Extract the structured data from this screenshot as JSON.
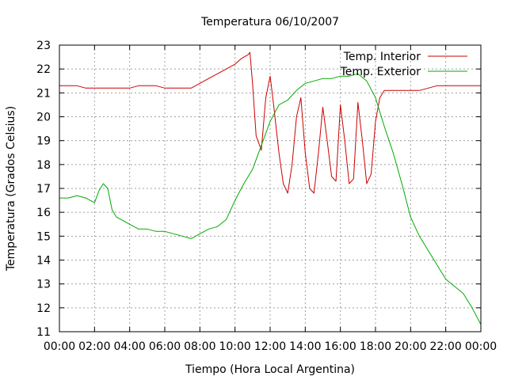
{
  "chart_data": {
    "type": "line",
    "title": "Temperatura 06/10/2007",
    "xlabel": "Tiempo (Hora Local Argentina)",
    "ylabel": "Temperatura (Grados Celsius)",
    "xlim": [
      0,
      24
    ],
    "ylim": [
      11,
      23
    ],
    "grid": true,
    "legend_position": "top-right",
    "x_tick_labels": [
      "00:00",
      "02:00",
      "04:00",
      "06:00",
      "08:00",
      "10:00",
      "12:00",
      "14:00",
      "16:00",
      "18:00",
      "20:00",
      "22:00",
      "00:00"
    ],
    "y_tick_labels": [
      "11",
      "12",
      "13",
      "14",
      "15",
      "16",
      "17",
      "18",
      "19",
      "20",
      "21",
      "22",
      "23"
    ],
    "series": [
      {
        "name": "Temp. Interior",
        "color": "#cc0000",
        "x": [
          0,
          0.5,
          1,
          1.5,
          2,
          2.5,
          3,
          3.5,
          4,
          4.5,
          5,
          5.5,
          6,
          6.5,
          7,
          7.5,
          8,
          8.5,
          9,
          9.5,
          10,
          10.3,
          10.5,
          10.75,
          10.85,
          11.0,
          11.2,
          11.5,
          11.75,
          12.0,
          12.2,
          12.5,
          12.75,
          13.0,
          13.25,
          13.5,
          13.75,
          14.0,
          14.25,
          14.5,
          14.75,
          15.0,
          15.25,
          15.5,
          15.75,
          16.0,
          16.25,
          16.5,
          16.75,
          17.0,
          17.25,
          17.5,
          17.75,
          18.0,
          18.25,
          18.5,
          18.75,
          19.0,
          19.5,
          20,
          20.5,
          21,
          21.5,
          22,
          22.5,
          23,
          23.5,
          24
        ],
        "y": [
          21.3,
          21.3,
          21.3,
          21.2,
          21.2,
          21.2,
          21.2,
          21.2,
          21.2,
          21.3,
          21.3,
          21.3,
          21.2,
          21.2,
          21.2,
          21.2,
          21.4,
          21.6,
          21.8,
          22.0,
          22.2,
          22.4,
          22.5,
          22.6,
          22.7,
          21.4,
          19.2,
          18.6,
          20.8,
          21.7,
          20.5,
          18.5,
          17.2,
          16.8,
          18.0,
          20.0,
          20.8,
          18.5,
          17.0,
          16.8,
          18.5,
          20.4,
          19.0,
          17.5,
          17.3,
          20.5,
          19.0,
          17.2,
          17.4,
          20.6,
          19.0,
          17.2,
          17.6,
          19.8,
          20.8,
          21.1,
          21.1,
          21.1,
          21.1,
          21.1,
          21.1,
          21.2,
          21.3,
          21.3,
          21.3,
          21.3,
          21.3,
          21.3
        ]
      },
      {
        "name": "Temp. Exterior",
        "color": "#00aa00",
        "x": [
          0,
          0.5,
          1,
          1.5,
          2,
          2.25,
          2.5,
          2.75,
          3,
          3.25,
          3.5,
          4,
          4.5,
          5,
          5.5,
          6,
          6.5,
          7,
          7.5,
          8,
          8.5,
          9,
          9.5,
          10,
          10.5,
          11,
          11.5,
          12,
          12.5,
          13,
          13.5,
          14,
          14.5,
          15,
          15.5,
          16,
          16.5,
          17,
          17.5,
          18,
          18.5,
          19,
          19.5,
          20,
          20.5,
          21,
          21.5,
          22,
          22.5,
          23,
          23.5,
          24
        ],
        "y": [
          16.6,
          16.6,
          16.7,
          16.6,
          16.4,
          16.9,
          17.2,
          17.0,
          16.1,
          15.8,
          15.7,
          15.5,
          15.3,
          15.3,
          15.2,
          15.2,
          15.1,
          15.0,
          14.9,
          15.1,
          15.3,
          15.4,
          15.7,
          16.5,
          17.2,
          17.8,
          18.8,
          19.8,
          20.5,
          20.7,
          21.1,
          21.4,
          21.5,
          21.6,
          21.6,
          21.7,
          21.7,
          21.8,
          21.5,
          20.8,
          19.6,
          18.5,
          17.2,
          15.8,
          15.0,
          14.4,
          13.8,
          13.2,
          12.9,
          12.6,
          12.0,
          11.3
        ]
      }
    ]
  }
}
